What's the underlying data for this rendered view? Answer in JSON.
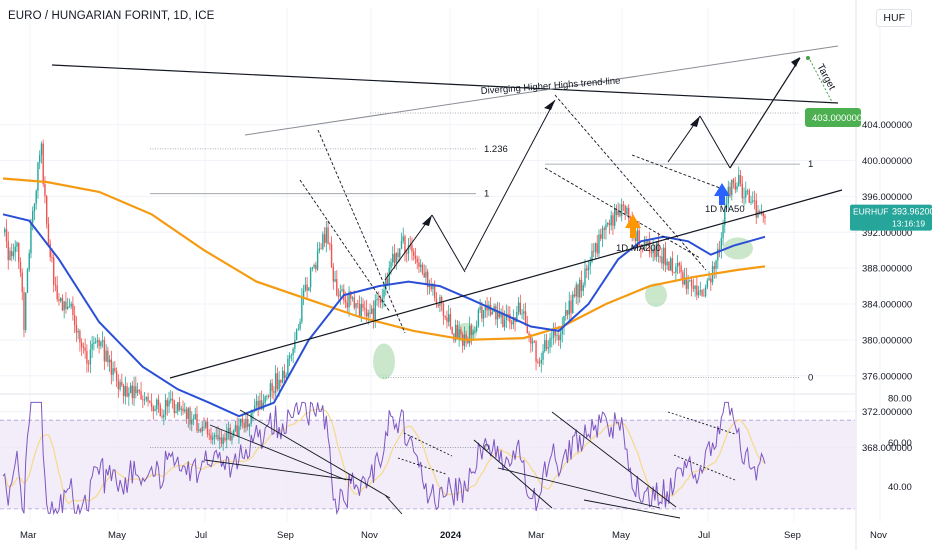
{
  "header": {
    "title": "EURO / HUNGARIAN FORINT, 1D, ICE",
    "currency_button": "HUF"
  },
  "colors": {
    "background": "#ffffff",
    "up_candle": "#26a69a",
    "down_candle": "#ef5350",
    "ma50": "#2a4fd6",
    "ma200": "#f59b12",
    "rsi_line": "#7e57c2",
    "rsi_signal": "#f7d98b",
    "rsi_band": "#ede7f6",
    "target_label": "#4caf50",
    "price_label": "#26a69a",
    "axis_text": "#131722",
    "fib_line": "#9598a1"
  },
  "chart_data": [
    {
      "type": "candlestick",
      "symbol": "EURHUF",
      "timeframe": "1D",
      "x_ticks": [
        "Mar",
        "May",
        "Jul",
        "Sep",
        "Nov",
        "2024",
        "Mar",
        "May",
        "Jul",
        "Sep",
        "Nov"
      ],
      "y_ticks": [
        "404.000000",
        "400.000000",
        "396.000000",
        "392.000000",
        "388.000000",
        "384.000000",
        "380.000000",
        "376.000000",
        "372.000000",
        "368.000000"
      ],
      "ylim": [
        366,
        406
      ],
      "current_price": "393.962000",
      "current_symbol": "EURHUF",
      "countdown": "13:16:19",
      "target_value": "403.000000",
      "anchor_closes": [
        [
          0,
          392
        ],
        [
          4,
          389
        ],
        [
          8,
          391
        ],
        [
          12,
          382
        ],
        [
          16,
          392
        ],
        [
          20,
          399
        ],
        [
          22,
          401
        ],
        [
          25,
          393
        ],
        [
          30,
          385
        ],
        [
          40,
          383
        ],
        [
          48,
          378
        ],
        [
          55,
          380
        ],
        [
          63,
          376
        ],
        [
          70,
          374
        ],
        [
          80,
          374
        ],
        [
          90,
          372
        ],
        [
          100,
          373
        ],
        [
          110,
          371
        ],
        [
          120,
          369
        ],
        [
          128,
          369
        ],
        [
          138,
          371
        ],
        [
          148,
          373
        ],
        [
          155,
          375
        ],
        [
          165,
          378
        ],
        [
          172,
          385
        ],
        [
          180,
          389
        ],
        [
          185,
          392
        ],
        [
          190,
          386
        ],
        [
          200,
          384
        ],
        [
          212,
          383
        ],
        [
          222,
          388
        ],
        [
          228,
          391
        ],
        [
          236,
          389
        ],
        [
          245,
          386
        ],
        [
          258,
          381
        ],
        [
          266,
          380
        ],
        [
          272,
          383
        ],
        [
          282,
          383
        ],
        [
          290,
          382
        ],
        [
          297,
          384
        ],
        [
          305,
          378
        ],
        [
          318,
          381
        ],
        [
          325,
          384
        ],
        [
          335,
          388
        ],
        [
          345,
          393
        ],
        [
          355,
          395
        ],
        [
          362,
          392
        ],
        [
          368,
          390
        ],
        [
          375,
          390
        ],
        [
          385,
          388
        ],
        [
          393,
          386
        ],
        [
          402,
          385
        ],
        [
          408,
          389
        ],
        [
          415,
          396
        ],
        [
          420,
          398
        ],
        [
          425,
          396
        ],
        [
          432,
          394
        ],
        [
          436,
          394
        ]
      ],
      "ma50": [
        [
          0,
          394
        ],
        [
          15,
          393.3
        ],
        [
          32,
          389
        ],
        [
          55,
          382
        ],
        [
          80,
          377
        ],
        [
          100,
          374.5
        ],
        [
          118,
          373
        ],
        [
          135,
          371.5
        ],
        [
          155,
          373
        ],
        [
          175,
          380
        ],
        [
          195,
          385
        ],
        [
          215,
          386
        ],
        [
          232,
          386.5
        ],
        [
          250,
          386
        ],
        [
          268,
          384.5
        ],
        [
          285,
          383
        ],
        [
          302,
          381.5
        ],
        [
          318,
          381
        ],
        [
          335,
          384
        ],
        [
          352,
          389
        ],
        [
          365,
          391
        ],
        [
          378,
          391.5
        ],
        [
          392,
          391
        ],
        [
          405,
          389.5
        ],
        [
          418,
          390.5
        ],
        [
          436,
          391.5
        ]
      ],
      "ma200": [
        [
          0,
          398
        ],
        [
          25,
          397.6
        ],
        [
          55,
          396.5
        ],
        [
          85,
          394
        ],
        [
          115,
          390
        ],
        [
          145,
          386.5
        ],
        [
          175,
          384.5
        ],
        [
          205,
          382.5
        ],
        [
          235,
          381
        ],
        [
          265,
          380
        ],
        [
          298,
          380.2
        ],
        [
          320,
          381.5
        ],
        [
          345,
          384
        ],
        [
          370,
          386
        ],
        [
          395,
          387
        ],
        [
          420,
          387.8
        ],
        [
          436,
          388.2
        ]
      ],
      "fib_levels": [
        {
          "label": "1.236",
          "value": 405.3
        },
        {
          "label": "1",
          "value": 399.6
        },
        {
          "label": "0",
          "value": 375.8
        },
        {
          "label": "1.236",
          "value": 401.3
        },
        {
          "label": "1",
          "value": 396.3
        },
        {
          "label": "0",
          "value": 368.0
        }
      ],
      "annotations": [
        {
          "text": "Diverging Higher Highs trend-line"
        },
        {
          "text": "Target"
        },
        {
          "text": "1D MA50"
        },
        {
          "text": "1D MA200"
        }
      ]
    },
    {
      "type": "line",
      "indicator": "RSI",
      "y_ticks": [
        "80.00",
        "60.00",
        "40.00"
      ],
      "band": [
        30,
        70
      ],
      "ylim": [
        25,
        80
      ]
    }
  ]
}
